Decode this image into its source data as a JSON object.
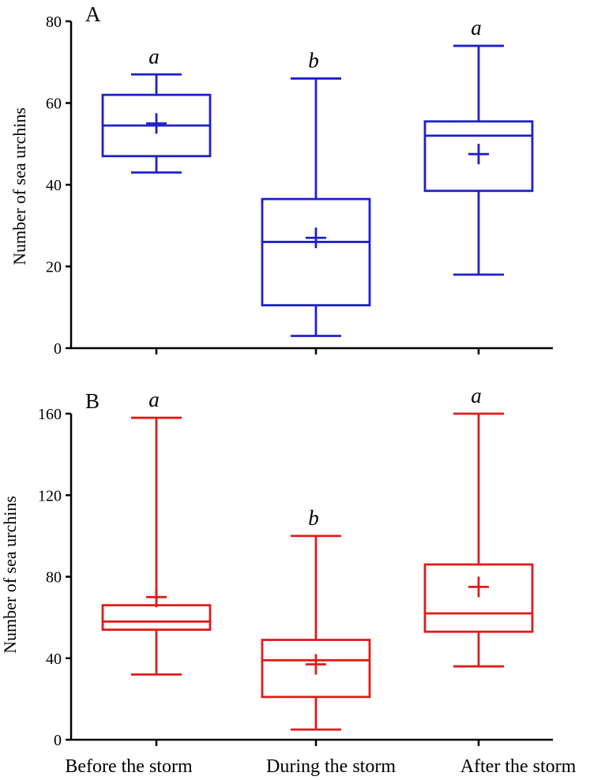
{
  "chart_data": [
    {
      "type": "box",
      "panel_label": "A",
      "ylabel": "Number of sea urchins",
      "ylim": [
        0,
        80
      ],
      "yticks": [
        "0",
        "20",
        "40",
        "60",
        "80"
      ],
      "color": "#1f1fcc",
      "categories": [
        "Before the storm",
        "During the storm",
        "After the storm"
      ],
      "boxes": [
        {
          "min": 43,
          "q1": 47,
          "median": 54.5,
          "q3": 62,
          "max": 67,
          "mean": 55,
          "group": "a"
        },
        {
          "min": 3,
          "q1": 10.5,
          "median": 26,
          "q3": 36.5,
          "max": 66,
          "mean": 27,
          "group": "b"
        },
        {
          "min": 18,
          "q1": 38.5,
          "median": 52,
          "q3": 55.5,
          "max": 74,
          "mean": 47.5,
          "group": "a"
        }
      ]
    },
    {
      "type": "box",
      "panel_label": "B",
      "ylabel": "Number of sea urchins",
      "ylim": [
        0,
        160
      ],
      "yticks": [
        "0",
        "40",
        "80",
        "120",
        "160"
      ],
      "color": "#e01b1b",
      "categories": [
        "Before the storm",
        "During the storm",
        "After the storm"
      ],
      "boxes": [
        {
          "min": 32,
          "q1": 54,
          "median": 58,
          "q3": 66,
          "max": 158,
          "mean": 70,
          "group": "a"
        },
        {
          "min": 5,
          "q1": 21,
          "median": 39,
          "q3": 49,
          "max": 100,
          "mean": 37,
          "group": "b"
        },
        {
          "min": 36,
          "q1": 53,
          "median": 62,
          "q3": 86,
          "max": 160,
          "mean": 75,
          "group": "a"
        }
      ]
    }
  ]
}
